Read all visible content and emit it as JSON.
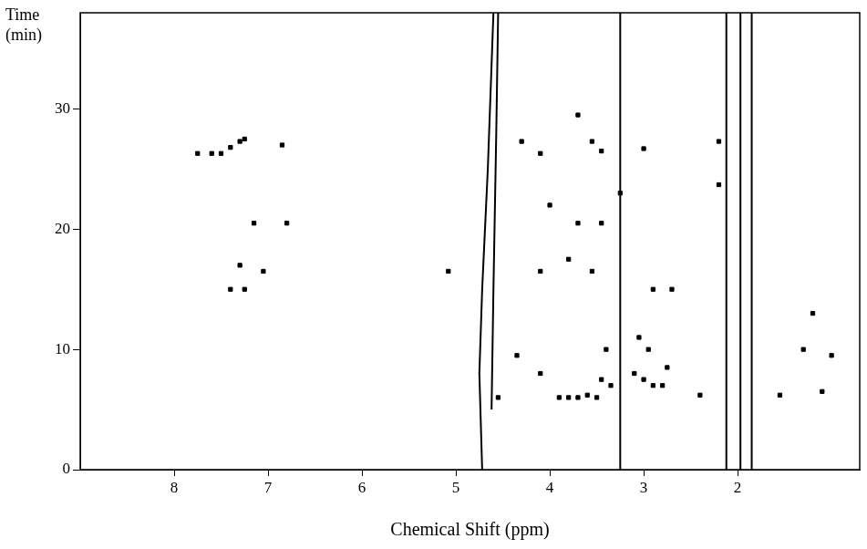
{
  "chart_data": {
    "type": "scatter",
    "xlabel": "Chemical Shift (ppm)",
    "ylabel": "Time\n(min)",
    "xlim": [
      9.0,
      0.7
    ],
    "ylim": [
      0,
      38
    ],
    "xticks": [
      8,
      7,
      6,
      5,
      4,
      3,
      2
    ],
    "yticks": [
      0,
      10,
      20,
      30
    ],
    "grid": false,
    "series": [
      {
        "type": "scatter",
        "marker": "square",
        "color": "#000000",
        "x": [
          7.75,
          7.6,
          7.5,
          7.4,
          7.3,
          7.25,
          6.85,
          7.15,
          6.8,
          7.4,
          7.3,
          7.25,
          7.05,
          5.08,
          4.1,
          3.55,
          3.8,
          4.3,
          4.1,
          3.55,
          3.45,
          3.0,
          2.2,
          2.2,
          3.25,
          3.7,
          3.7,
          3.45,
          4.0,
          4.35,
          4.1,
          3.9,
          3.8,
          3.7,
          3.6,
          3.5,
          3.45,
          3.4,
          3.1,
          3.0,
          2.9,
          2.8,
          2.75,
          2.95,
          3.05,
          2.4,
          1.55,
          1.3,
          1.1,
          1.2,
          1.0,
          2.9,
          4.55,
          3.35,
          2.7
        ],
        "values": [
          26.3,
          26.3,
          26.3,
          26.8,
          27.3,
          27.5,
          27.0,
          20.5,
          20.5,
          15.0,
          17.0,
          15.0,
          16.5,
          16.5,
          16.5,
          16.5,
          17.5,
          27.3,
          26.3,
          27.3,
          26.5,
          26.7,
          27.3,
          23.7,
          23.0,
          29.5,
          20.5,
          20.5,
          22.0,
          9.5,
          8.0,
          6.0,
          6.0,
          6.0,
          6.2,
          6.0,
          7.5,
          10.0,
          8.0,
          7.5,
          7.0,
          7.0,
          8.5,
          10.0,
          11.0,
          6.2,
          6.2,
          10.0,
          6.5,
          13.0,
          9.5,
          15.0,
          6.0,
          7.0,
          15.0
        ]
      },
      {
        "type": "line",
        "color": "#000000",
        "x": [
          4.72,
          4.75,
          4.72,
          4.66,
          4.6
        ],
        "values": [
          0,
          8,
          15,
          25,
          38
        ]
      },
      {
        "type": "line",
        "color": "#000000",
        "x": [
          4.62,
          4.6,
          4.57,
          4.55
        ],
        "values": [
          5,
          15,
          28,
          38
        ]
      },
      {
        "type": "line",
        "color": "#000000",
        "x": [
          3.25,
          3.25
        ],
        "values": [
          0,
          38
        ]
      },
      {
        "type": "line",
        "color": "#000000",
        "x": [
          2.12,
          2.12
        ],
        "values": [
          0,
          38
        ]
      },
      {
        "type": "line",
        "color": "#000000",
        "x": [
          1.97,
          1.97
        ],
        "values": [
          0,
          38
        ]
      },
      {
        "type": "line",
        "color": "#000000",
        "x": [
          1.85,
          1.85
        ],
        "values": [
          0,
          38
        ]
      }
    ]
  }
}
